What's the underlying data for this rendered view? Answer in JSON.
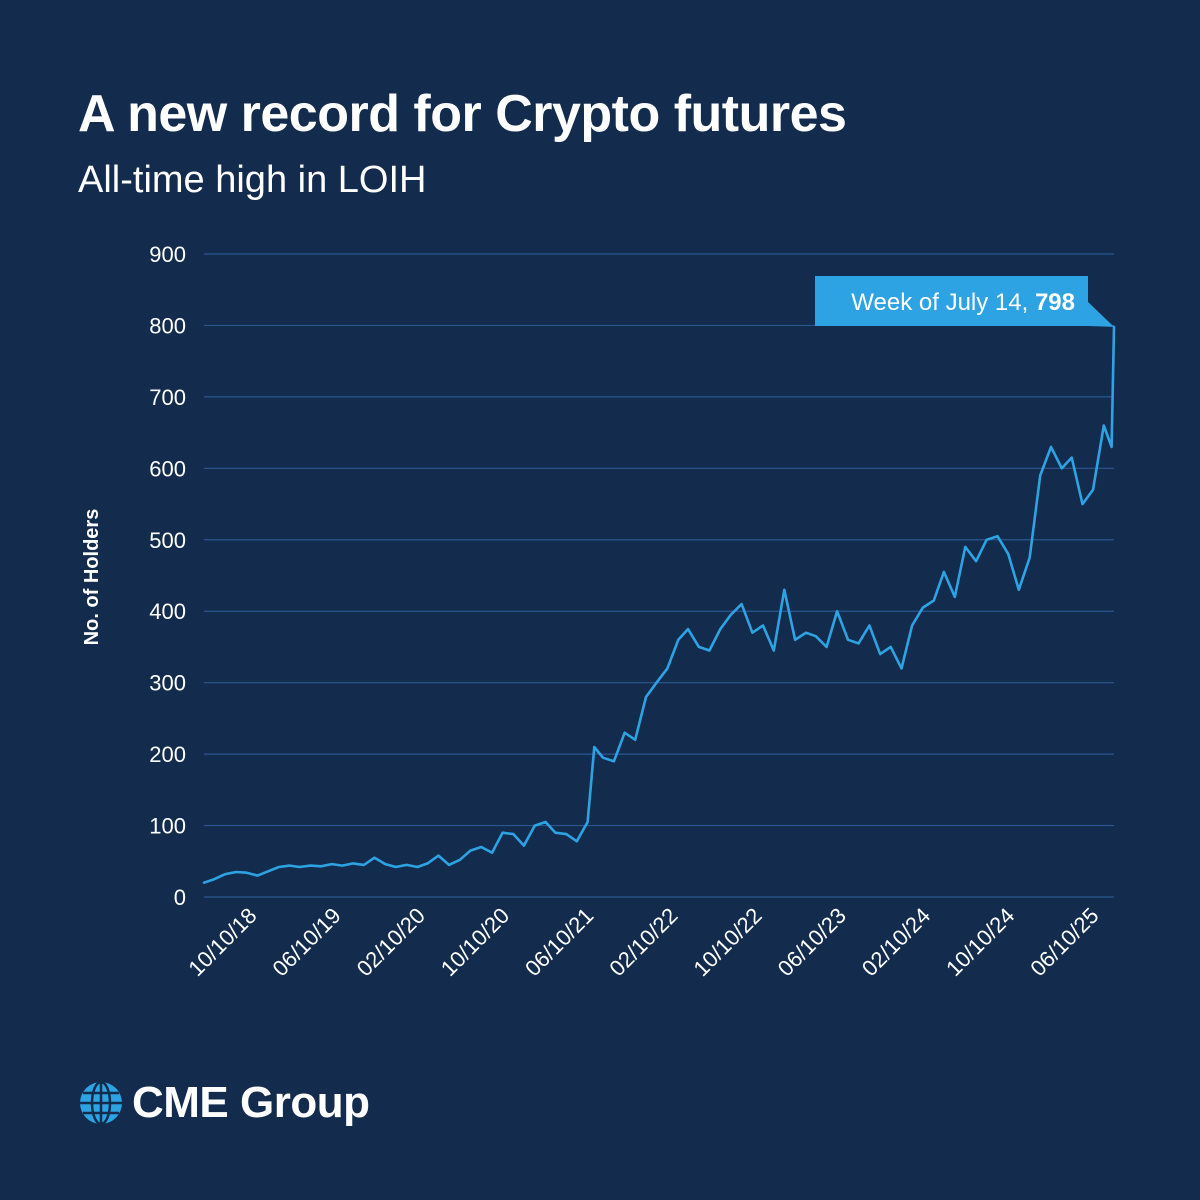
{
  "header": {
    "title": "A new record for Crypto futures",
    "subtitle": "All-time high in LOIH"
  },
  "chart_data": {
    "type": "line",
    "title": "A new record for Crypto futures",
    "subtitle": "All-time high in LOIH",
    "xlabel": "",
    "ylabel": "No. of Holders",
    "ylim": [
      0,
      900
    ],
    "yticks": [
      0,
      100,
      200,
      300,
      400,
      500,
      600,
      700,
      800,
      900
    ],
    "x_tick_labels": [
      "10/10/18",
      "06/10/19",
      "02/10/20",
      "10/10/20",
      "06/10/21",
      "02/10/22",
      "10/10/22",
      "06/10/23",
      "02/10/24",
      "10/10/24",
      "06/10/25"
    ],
    "grid": "horizontal",
    "line_color": "#2ea3e3",
    "annotation": {
      "prefix": "Week of July 14, ",
      "value": "798"
    },
    "series": [
      {
        "points": [
          [
            "2018-06-01",
            20
          ],
          [
            "2018-07-01",
            25
          ],
          [
            "2018-08-01",
            32
          ],
          [
            "2018-09-01",
            35
          ],
          [
            "2018-10-01",
            34
          ],
          [
            "2018-11-01",
            30
          ],
          [
            "2018-12-01",
            36
          ],
          [
            "2019-01-01",
            42
          ],
          [
            "2019-02-01",
            44
          ],
          [
            "2019-03-01",
            42
          ],
          [
            "2019-04-01",
            44
          ],
          [
            "2019-05-01",
            43
          ],
          [
            "2019-06-01",
            46
          ],
          [
            "2019-07-01",
            44
          ],
          [
            "2019-08-01",
            47
          ],
          [
            "2019-09-01",
            45
          ],
          [
            "2019-10-01",
            55
          ],
          [
            "2019-11-01",
            46
          ],
          [
            "2019-12-01",
            42
          ],
          [
            "2020-01-01",
            45
          ],
          [
            "2020-02-01",
            42
          ],
          [
            "2020-03-01",
            47
          ],
          [
            "2020-04-01",
            58
          ],
          [
            "2020-05-01",
            45
          ],
          [
            "2020-06-01",
            52
          ],
          [
            "2020-07-01",
            65
          ],
          [
            "2020-08-01",
            70
          ],
          [
            "2020-09-01",
            62
          ],
          [
            "2020-10-01",
            90
          ],
          [
            "2020-11-01",
            88
          ],
          [
            "2020-12-01",
            72
          ],
          [
            "2021-01-01",
            100
          ],
          [
            "2021-02-01",
            105
          ],
          [
            "2021-03-01",
            90
          ],
          [
            "2021-04-01",
            88
          ],
          [
            "2021-05-01",
            78
          ],
          [
            "2021-06-01",
            105
          ],
          [
            "2021-06-20",
            210
          ],
          [
            "2021-07-15",
            195
          ],
          [
            "2021-08-15",
            190
          ],
          [
            "2021-09-15",
            230
          ],
          [
            "2021-10-15",
            220
          ],
          [
            "2021-11-15",
            280
          ],
          [
            "2021-12-15",
            300
          ],
          [
            "2022-01-15",
            320
          ],
          [
            "2022-02-15",
            360
          ],
          [
            "2022-03-15",
            375
          ],
          [
            "2022-04-15",
            350
          ],
          [
            "2022-05-15",
            345
          ],
          [
            "2022-06-15",
            375
          ],
          [
            "2022-07-15",
            395
          ],
          [
            "2022-08-15",
            410
          ],
          [
            "2022-09-15",
            370
          ],
          [
            "2022-10-15",
            380
          ],
          [
            "2022-11-15",
            345
          ],
          [
            "2022-12-15",
            430
          ],
          [
            "2023-01-15",
            360
          ],
          [
            "2023-02-15",
            370
          ],
          [
            "2023-03-15",
            365
          ],
          [
            "2023-04-15",
            350
          ],
          [
            "2023-05-15",
            400
          ],
          [
            "2023-06-15",
            360
          ],
          [
            "2023-07-15",
            355
          ],
          [
            "2023-08-15",
            380
          ],
          [
            "2023-09-15",
            340
          ],
          [
            "2023-10-15",
            350
          ],
          [
            "2023-11-15",
            320
          ],
          [
            "2023-12-15",
            380
          ],
          [
            "2024-01-15",
            405
          ],
          [
            "2024-02-15",
            415
          ],
          [
            "2024-03-15",
            455
          ],
          [
            "2024-04-15",
            420
          ],
          [
            "2024-05-15",
            490
          ],
          [
            "2024-06-15",
            470
          ],
          [
            "2024-07-15",
            500
          ],
          [
            "2024-08-15",
            505
          ],
          [
            "2024-09-15",
            480
          ],
          [
            "2024-10-15",
            430
          ],
          [
            "2024-11-15",
            475
          ],
          [
            "2024-12-15",
            590
          ],
          [
            "2025-01-15",
            630
          ],
          [
            "2025-02-15",
            600
          ],
          [
            "2025-03-15",
            615
          ],
          [
            "2025-04-15",
            550
          ],
          [
            "2025-05-15",
            570
          ],
          [
            "2025-06-15",
            660
          ],
          [
            "2025-07-07",
            630
          ],
          [
            "2025-07-14",
            798
          ]
        ]
      }
    ]
  },
  "brand": {
    "logo_icon": "globe-icon",
    "name": "CME Group"
  }
}
